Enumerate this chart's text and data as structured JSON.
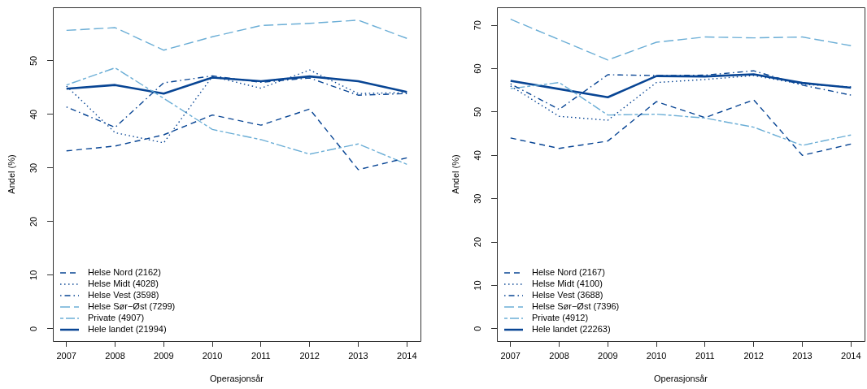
{
  "chart_data": [
    {
      "type": "line",
      "xlabel": "Operasjonsår",
      "ylabel": "Andel (%)",
      "x": [
        2007,
        2008,
        2009,
        2010,
        2011,
        2012,
        2013,
        2014
      ],
      "xlim": [
        2006.72,
        2014.28
      ],
      "xticks": [
        2007,
        2008,
        2009,
        2010,
        2011,
        2012,
        2013,
        2014
      ],
      "ylim": [
        -2.3,
        60
      ],
      "yticks": [
        0,
        10,
        20,
        30,
        40,
        50
      ],
      "grid": false,
      "legend": "bottom left",
      "series": [
        {
          "name": "Helse Nord (2162)",
          "color": "#084594",
          "line_style": "dashed",
          "values": [
            33.2,
            34.1,
            36.2,
            39.9,
            38.0,
            41.0,
            29.7,
            31.9
          ]
        },
        {
          "name": "Helse Midt (4028)",
          "color": "#084594",
          "line_style": "dotted",
          "values": [
            45.3,
            36.6,
            34.7,
            47.1,
            44.9,
            48.3,
            43.9,
            44.1
          ]
        },
        {
          "name": "Helse Vest (3598)",
          "color": "#084594",
          "line_style": "dashdot",
          "values": [
            41.4,
            37.6,
            45.9,
            47.2,
            46.0,
            46.8,
            43.6,
            43.9
          ]
        },
        {
          "name": "Helse Sør−Øst (7299)",
          "color": "#6baed6",
          "line_style": "longdash",
          "values": [
            55.7,
            56.2,
            52.0,
            54.5,
            56.6,
            57.0,
            57.6,
            54.2
          ]
        },
        {
          "name": "Private (4907)",
          "color": "#6baed6",
          "line_style": "twodash",
          "values": [
            45.5,
            48.7,
            43.0,
            37.2,
            35.3,
            32.6,
            34.5,
            30.7
          ]
        },
        {
          "name": "Hele landet (21994)",
          "color": "#084594",
          "line_style": "solid",
          "values": [
            44.8,
            45.5,
            43.9,
            46.9,
            46.2,
            47.1,
            46.2,
            44.2
          ]
        }
      ]
    },
    {
      "type": "line",
      "xlabel": "Operasjonsår",
      "ylabel": "Andel (%)",
      "x": [
        2007,
        2008,
        2009,
        2010,
        2011,
        2012,
        2013,
        2014
      ],
      "xlim": [
        2006.72,
        2014.28
      ],
      "xticks": [
        2007,
        2008,
        2009,
        2010,
        2011,
        2012,
        2013,
        2014
      ],
      "ylim": [
        -2.85,
        74.15
      ],
      "yticks": [
        0,
        10,
        20,
        30,
        40,
        50,
        60,
        70
      ],
      "grid": false,
      "legend": "bottom left",
      "series": [
        {
          "name": "Helse Nord (2167)",
          "color": "#084594",
          "line_style": "dashed",
          "values": [
            44.0,
            41.6,
            43.3,
            52.4,
            48.7,
            52.8,
            40.0,
            42.6
          ]
        },
        {
          "name": "Helse Midt (4100)",
          "color": "#084594",
          "line_style": "dotted",
          "values": [
            56.0,
            49.0,
            48.1,
            56.8,
            57.5,
            58.4,
            56.4,
            55.8
          ]
        },
        {
          "name": "Helse Vest (3688)",
          "color": "#084594",
          "line_style": "dashdot",
          "values": [
            56.5,
            50.6,
            58.6,
            58.4,
            58.5,
            59.5,
            56.2,
            53.9
          ]
        },
        {
          "name": "Helse Sør−Øst (7396)",
          "color": "#6baed6",
          "line_style": "longdash",
          "values": [
            71.4,
            66.7,
            62.0,
            66.1,
            67.3,
            67.1,
            67.3,
            65.3
          ]
        },
        {
          "name": "Private (4912)",
          "color": "#6baed6",
          "line_style": "twodash",
          "values": [
            55.4,
            56.8,
            49.3,
            49.5,
            48.6,
            46.5,
            42.3,
            44.7
          ]
        },
        {
          "name": "Hele landet (22263)",
          "color": "#084594",
          "line_style": "solid",
          "values": [
            57.2,
            55.3,
            53.4,
            58.3,
            58.2,
            58.7,
            56.7,
            55.6
          ]
        }
      ]
    }
  ]
}
